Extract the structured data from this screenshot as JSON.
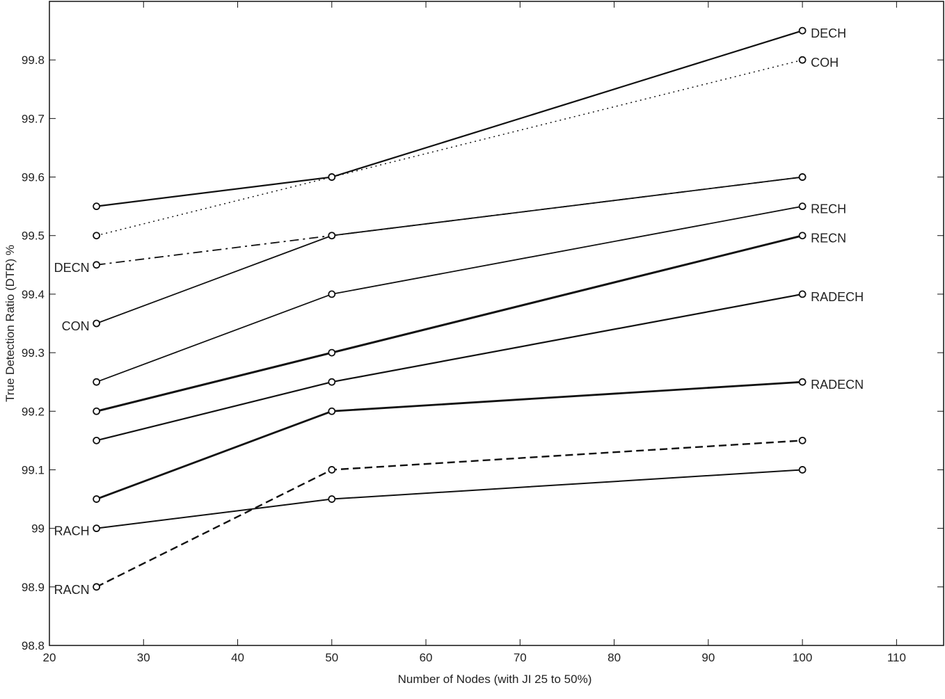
{
  "chart_data": {
    "type": "line",
    "title": "",
    "xlabel": "Number of Nodes (with JI 25 to 50%)",
    "ylabel": "True Detection Ratio (DTR) %",
    "xlim": [
      20,
      115
    ],
    "ylim": [
      98.8,
      99.9
    ],
    "xticks": [
      "20",
      "30",
      "40",
      "50",
      "60",
      "70",
      "80",
      "90",
      "100",
      "110"
    ],
    "yticks": [
      "98.8",
      "98.9",
      "99",
      "99.1",
      "99.2",
      "99.3",
      "99.4",
      "99.5",
      "99.6",
      "99.7",
      "99.8"
    ],
    "grid": false,
    "legend": "none",
    "x": [
      25,
      50,
      100
    ],
    "series": [
      {
        "values": [
          99.55,
          99.6,
          99.85
        ],
        "style": "solid",
        "width": 2.2
      },
      {
        "values": [
          99.5,
          99.6,
          99.8
        ],
        "style": "dotted",
        "width": 1.5
      },
      {
        "values": [
          99.45,
          99.5,
          99.6
        ],
        "style": "dashdot",
        "width": 1.8
      },
      {
        "values": [
          99.35,
          99.5,
          99.6
        ],
        "style": "solid",
        "width": 1.8
      },
      {
        "values": [
          99.25,
          99.4,
          99.55
        ],
        "style": "solid",
        "width": 1.8
      },
      {
        "values": [
          99.2,
          99.3,
          99.5
        ],
        "style": "solid",
        "width": 3
      },
      {
        "values": [
          99.15,
          99.25,
          99.4
        ],
        "style": "solid",
        "width": 2.2
      },
      {
        "values": [
          99.05,
          99.2,
          99.25
        ],
        "style": "solid",
        "width": 2.8
      },
      {
        "values": [
          98.9,
          99.1,
          99.15
        ],
        "style": "dashed",
        "width": 2.4
      },
      {
        "values": [
          99.0,
          99.05,
          99.1
        ],
        "style": "solid",
        "width": 2
      }
    ],
    "annotations": [
      {
        "text": "DECH",
        "x": 100,
        "y": 99.85,
        "side": "right"
      },
      {
        "text": "COH",
        "x": 100,
        "y": 99.8,
        "side": "right"
      },
      {
        "text": "RECH",
        "x": 100,
        "y": 99.55,
        "side": "right"
      },
      {
        "text": "RECN",
        "x": 100,
        "y": 99.5,
        "side": "right"
      },
      {
        "text": "RADECH",
        "x": 100,
        "y": 99.4,
        "side": "right"
      },
      {
        "text": "RADECN",
        "x": 100,
        "y": 99.25,
        "side": "right"
      },
      {
        "text": "DECN",
        "x": 25,
        "y": 99.45,
        "side": "left"
      },
      {
        "text": "CON",
        "x": 25,
        "y": 99.35,
        "side": "left"
      },
      {
        "text": "RACH",
        "x": 25,
        "y": 99.0,
        "side": "left"
      },
      {
        "text": "RACN",
        "x": 25,
        "y": 98.9,
        "side": "left"
      }
    ],
    "colors": {
      "line": "#111111",
      "axis": "#111111",
      "background": "#ffffff"
    }
  }
}
